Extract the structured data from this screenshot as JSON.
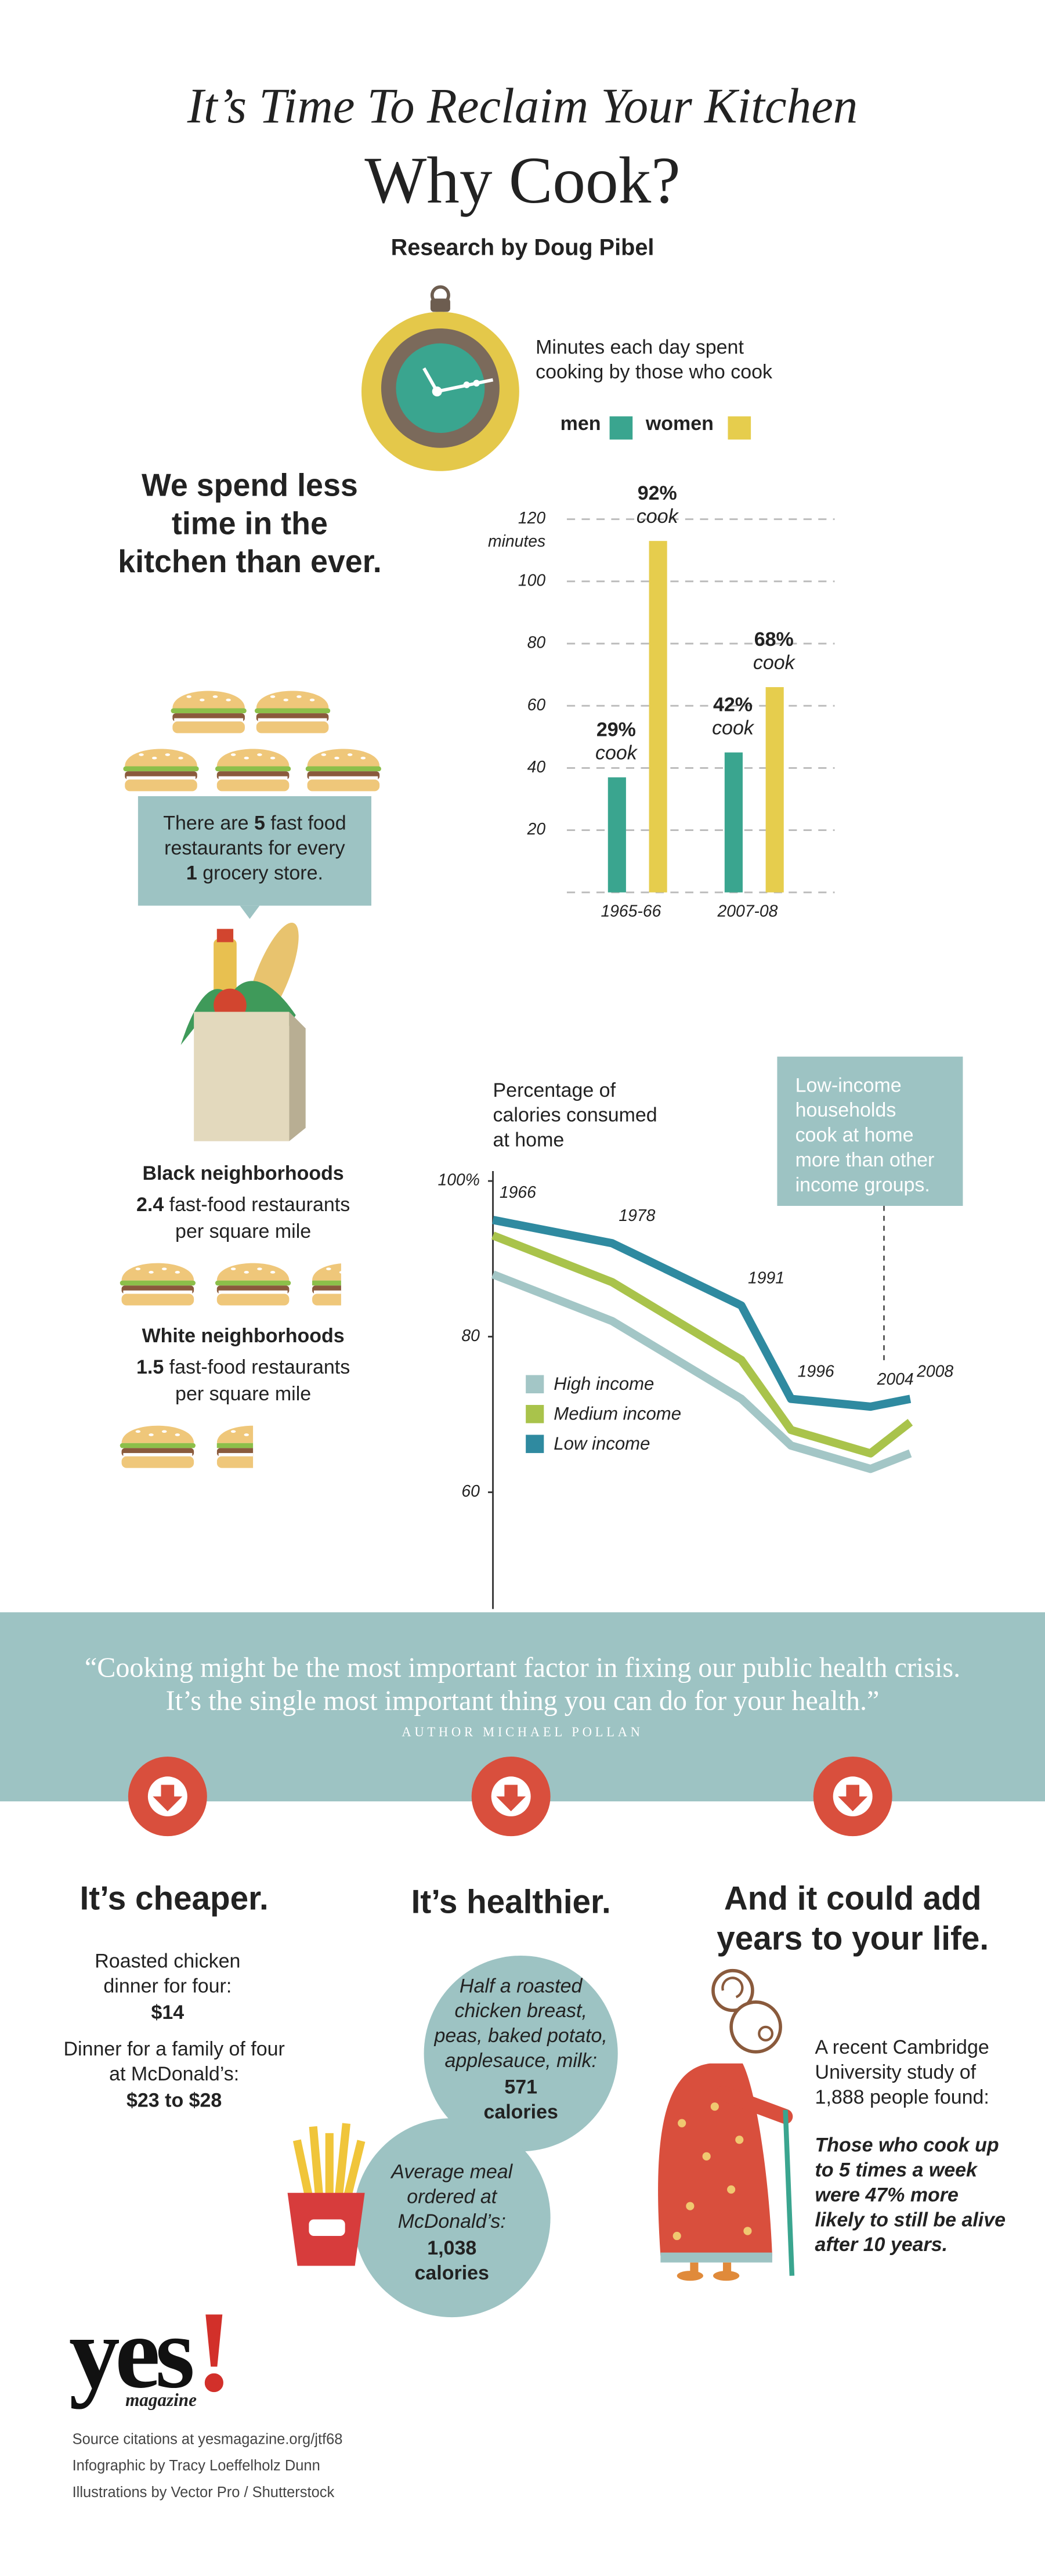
{
  "header": {
    "kicker": "It’s Time To Reclaim Your Kitchen",
    "title": "Why Cook?",
    "byline": "Research by Doug Pibel"
  },
  "intro": {
    "headline_lines": [
      "We spend less",
      "time in the",
      "kitchen than ever."
    ]
  },
  "fast_food_box": {
    "before": "There are",
    "fast_food": 5,
    "middle_lines": [
      "fast food",
      "restaurants for every"
    ],
    "grocery": 1,
    "after": "grocery store."
  },
  "neighborhoods": [
    {
      "label": "Black neighborhoods",
      "density": 2.4,
      "unit_lines": [
        "fast-food restaurants",
        "per square mile"
      ]
    },
    {
      "label": "White neighborhoods",
      "density": 1.5,
      "unit_lines": [
        "fast-food restaurants",
        "per square mile"
      ]
    }
  ],
  "chart_data": [
    {
      "type": "bar",
      "title_lines": [
        "Minutes each day spent",
        "cooking by those who cook"
      ],
      "y_unit": "minutes",
      "categories": [
        "1965-66",
        "2007-08"
      ],
      "series": [
        {
          "name": "men",
          "color": "#3aa58f",
          "values": [
            37,
            45
          ],
          "shares": [
            "29%",
            "42%"
          ]
        },
        {
          "name": "women",
          "color": "#e6cd4d",
          "values": [
            113,
            66
          ],
          "shares": [
            "92%",
            "68%"
          ]
        }
      ],
      "share_label": "cook",
      "ylim": [
        0,
        120
      ],
      "yticks": [
        20,
        40,
        60,
        80,
        100,
        120
      ],
      "grid": true
    },
    {
      "type": "line",
      "title_lines": [
        "Percentage of",
        "calories consumed",
        "at home"
      ],
      "x": [
        1966,
        1978,
        1991,
        1996,
        2004,
        2008
      ],
      "xlim": [
        1966,
        2008
      ],
      "ylim": [
        45,
        100
      ],
      "yticks": [
        {
          "value": 100,
          "label": "100%"
        },
        80,
        60
      ],
      "series": [
        {
          "name": "High income",
          "color": "#a3c6c6",
          "values": [
            88,
            82,
            72,
            66,
            63,
            65
          ]
        },
        {
          "name": "Medium income",
          "color": "#a9c34b",
          "values": [
            93,
            87,
            77,
            68,
            65,
            69
          ]
        },
        {
          "name": "Low income",
          "color": "#2f8aa0",
          "values": [
            95,
            92,
            84,
            72,
            71,
            72
          ]
        }
      ],
      "annotation_lines": [
        "Low-income",
        "households",
        "cook at home",
        "more than other",
        "income groups."
      ]
    }
  ],
  "quote": {
    "lines": [
      "“Cooking might be the most important factor in fixing our public health crisis.",
      "It’s the single most important thing you can do for your health.”"
    ],
    "author": "AUTHOR MICHAEL POLLAN"
  },
  "reasons": [
    {
      "heading_lines": [
        "It’s cheaper."
      ],
      "items": [
        {
          "lines": [
            "Roasted chicken",
            "dinner for four:"
          ],
          "amount": "$14"
        },
        {
          "lines": [
            "Dinner for a family of four",
            "at McDonald’s:"
          ],
          "amount": "$23 to $28"
        }
      ]
    },
    {
      "heading_lines": [
        "It’s healthier."
      ],
      "items": [
        {
          "lines": [
            "Half a roasted",
            "chicken breast,",
            "peas, baked potato,",
            "applesauce, milk:"
          ],
          "amount": 571,
          "unit": "calories"
        },
        {
          "lines": [
            "Average meal",
            "ordered at",
            "McDonald’s:"
          ],
          "amount": "1,038",
          "unit": "calories"
        }
      ]
    },
    {
      "heading_lines": [
        "And it could add",
        "years to your life."
      ],
      "study_lines": [
        "A recent Cambridge",
        "University study of",
        "1,888 people found:"
      ],
      "finding_lines": [
        "Those who cook up",
        "to 5 times a week",
        "were 47% more",
        "likely to still be alive",
        "after 10 years."
      ]
    }
  ],
  "footer": {
    "logo": "yes",
    "logo_mark": "!",
    "logo_sub": "magazine",
    "credits": [
      "Source citations at yesmagazine.org/jtf68",
      "Infographic by Tracy Loeffelholz Dunn",
      "Illustrations by Vector Pro / Shutterstock"
    ]
  }
}
